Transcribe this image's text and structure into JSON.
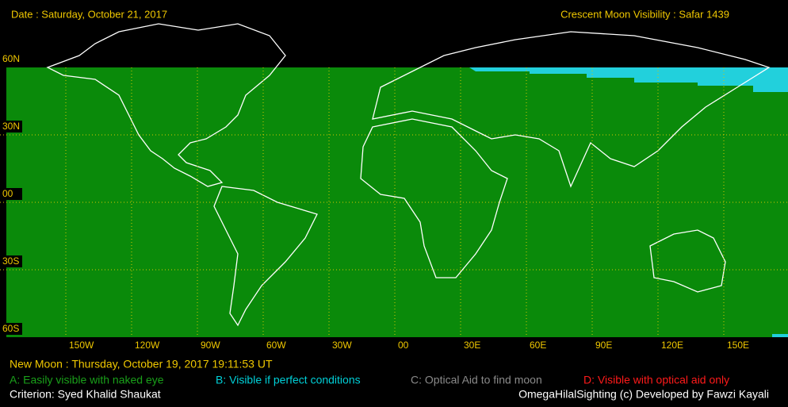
{
  "header": {
    "date": "Date : Saturday, October 21, 2017",
    "title": "Crescent Moon Visibility : Safar  1439"
  },
  "map": {
    "lat_labels": [
      "60N",
      "30N",
      "00",
      "30S",
      "60S"
    ],
    "lon_labels": [
      "150W",
      "120W",
      "90W",
      "60W",
      "30W",
      "00",
      "30E",
      "60E",
      "90E",
      "120E",
      "150E"
    ]
  },
  "footer": {
    "new_moon": "New Moon : Thursday, October 19, 2017  19:11:53  UT",
    "legend": [
      {
        "text": "A: Easily visible with naked eye",
        "color": "#1aa01a"
      },
      {
        "text": "B: Visible if perfect conditions",
        "color": "#00d0d8"
      },
      {
        "text": "C: Optical Aid to find moon",
        "color": "#8a8a8a"
      },
      {
        "text": "D: Visible with optical aid only",
        "color": "#ff1a1a"
      }
    ],
    "criterion": "Criterion: Syed Khalid Shaukat",
    "credit": "OmegaHilalSighting  (c)  Developed by Fawzi Kayali"
  }
}
